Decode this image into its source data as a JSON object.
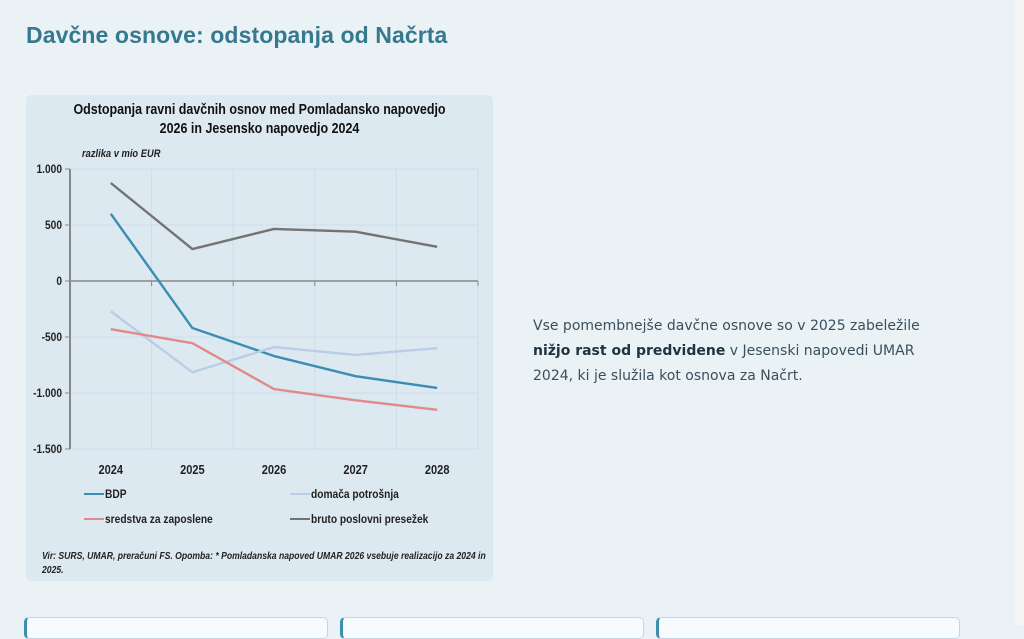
{
  "page": {
    "title": "Davčne osnove: odstopanja od Načrta",
    "side_text": {
      "before": "Vse pomembnejše davčne osnove so v 2025 zabeležile ",
      "bold": "nižjo rast od predvidene",
      "after": " v Jesenski napovedi UMAR 2024, ki je služila kot osnova za Načrt."
    },
    "bottom_cards": [
      "",
      "",
      ""
    ]
  },
  "chart_data": {
    "type": "line",
    "title": "Odstopanja ravni davčnih osnov med Pomladansko napovedjo 2026 in Jesensko napovedjo 2024",
    "title_lines": [
      "Odstopanja ravni davčnih osnov med Pomladansko napovedjo",
      "2026 in Jesensko napovedjo 2024"
    ],
    "ylabel": "razlika v mio EUR",
    "xlabel": "",
    "categories": [
      "2024",
      "2025",
      "2026",
      "2027",
      "2028"
    ],
    "ylim": [
      -1500,
      1000
    ],
    "yticks": [
      1000,
      500,
      0,
      -500,
      -1000,
      -1500
    ],
    "ytick_labels": [
      "1.000",
      "500",
      "0",
      "-500",
      "-1.000",
      "-1.500"
    ],
    "grid": true,
    "legend_position": "bottom",
    "series": [
      {
        "name": "BDP",
        "color": "#3a8db3",
        "values": [
          600,
          -420,
          -670,
          -850,
          -955
        ]
      },
      {
        "name": "domača potrošnja",
        "color": "#b9cde8",
        "values": [
          -270,
          -815,
          -590,
          -660,
          -600
        ]
      },
      {
        "name": "sredstva za zaposlene",
        "color": "#e08a8a",
        "values": [
          -430,
          -555,
          -965,
          -1065,
          -1150
        ]
      },
      {
        "name": "bruto poslovni presežek",
        "color": "#737373",
        "values": [
          875,
          285,
          465,
          440,
          305
        ]
      }
    ],
    "source_note": "Vir: SURS, UMAR, preračuni FS. Opomba: * Pomladanska napoved UMAR 2026 vsebuje realizacijo za 2024 in 2025."
  }
}
